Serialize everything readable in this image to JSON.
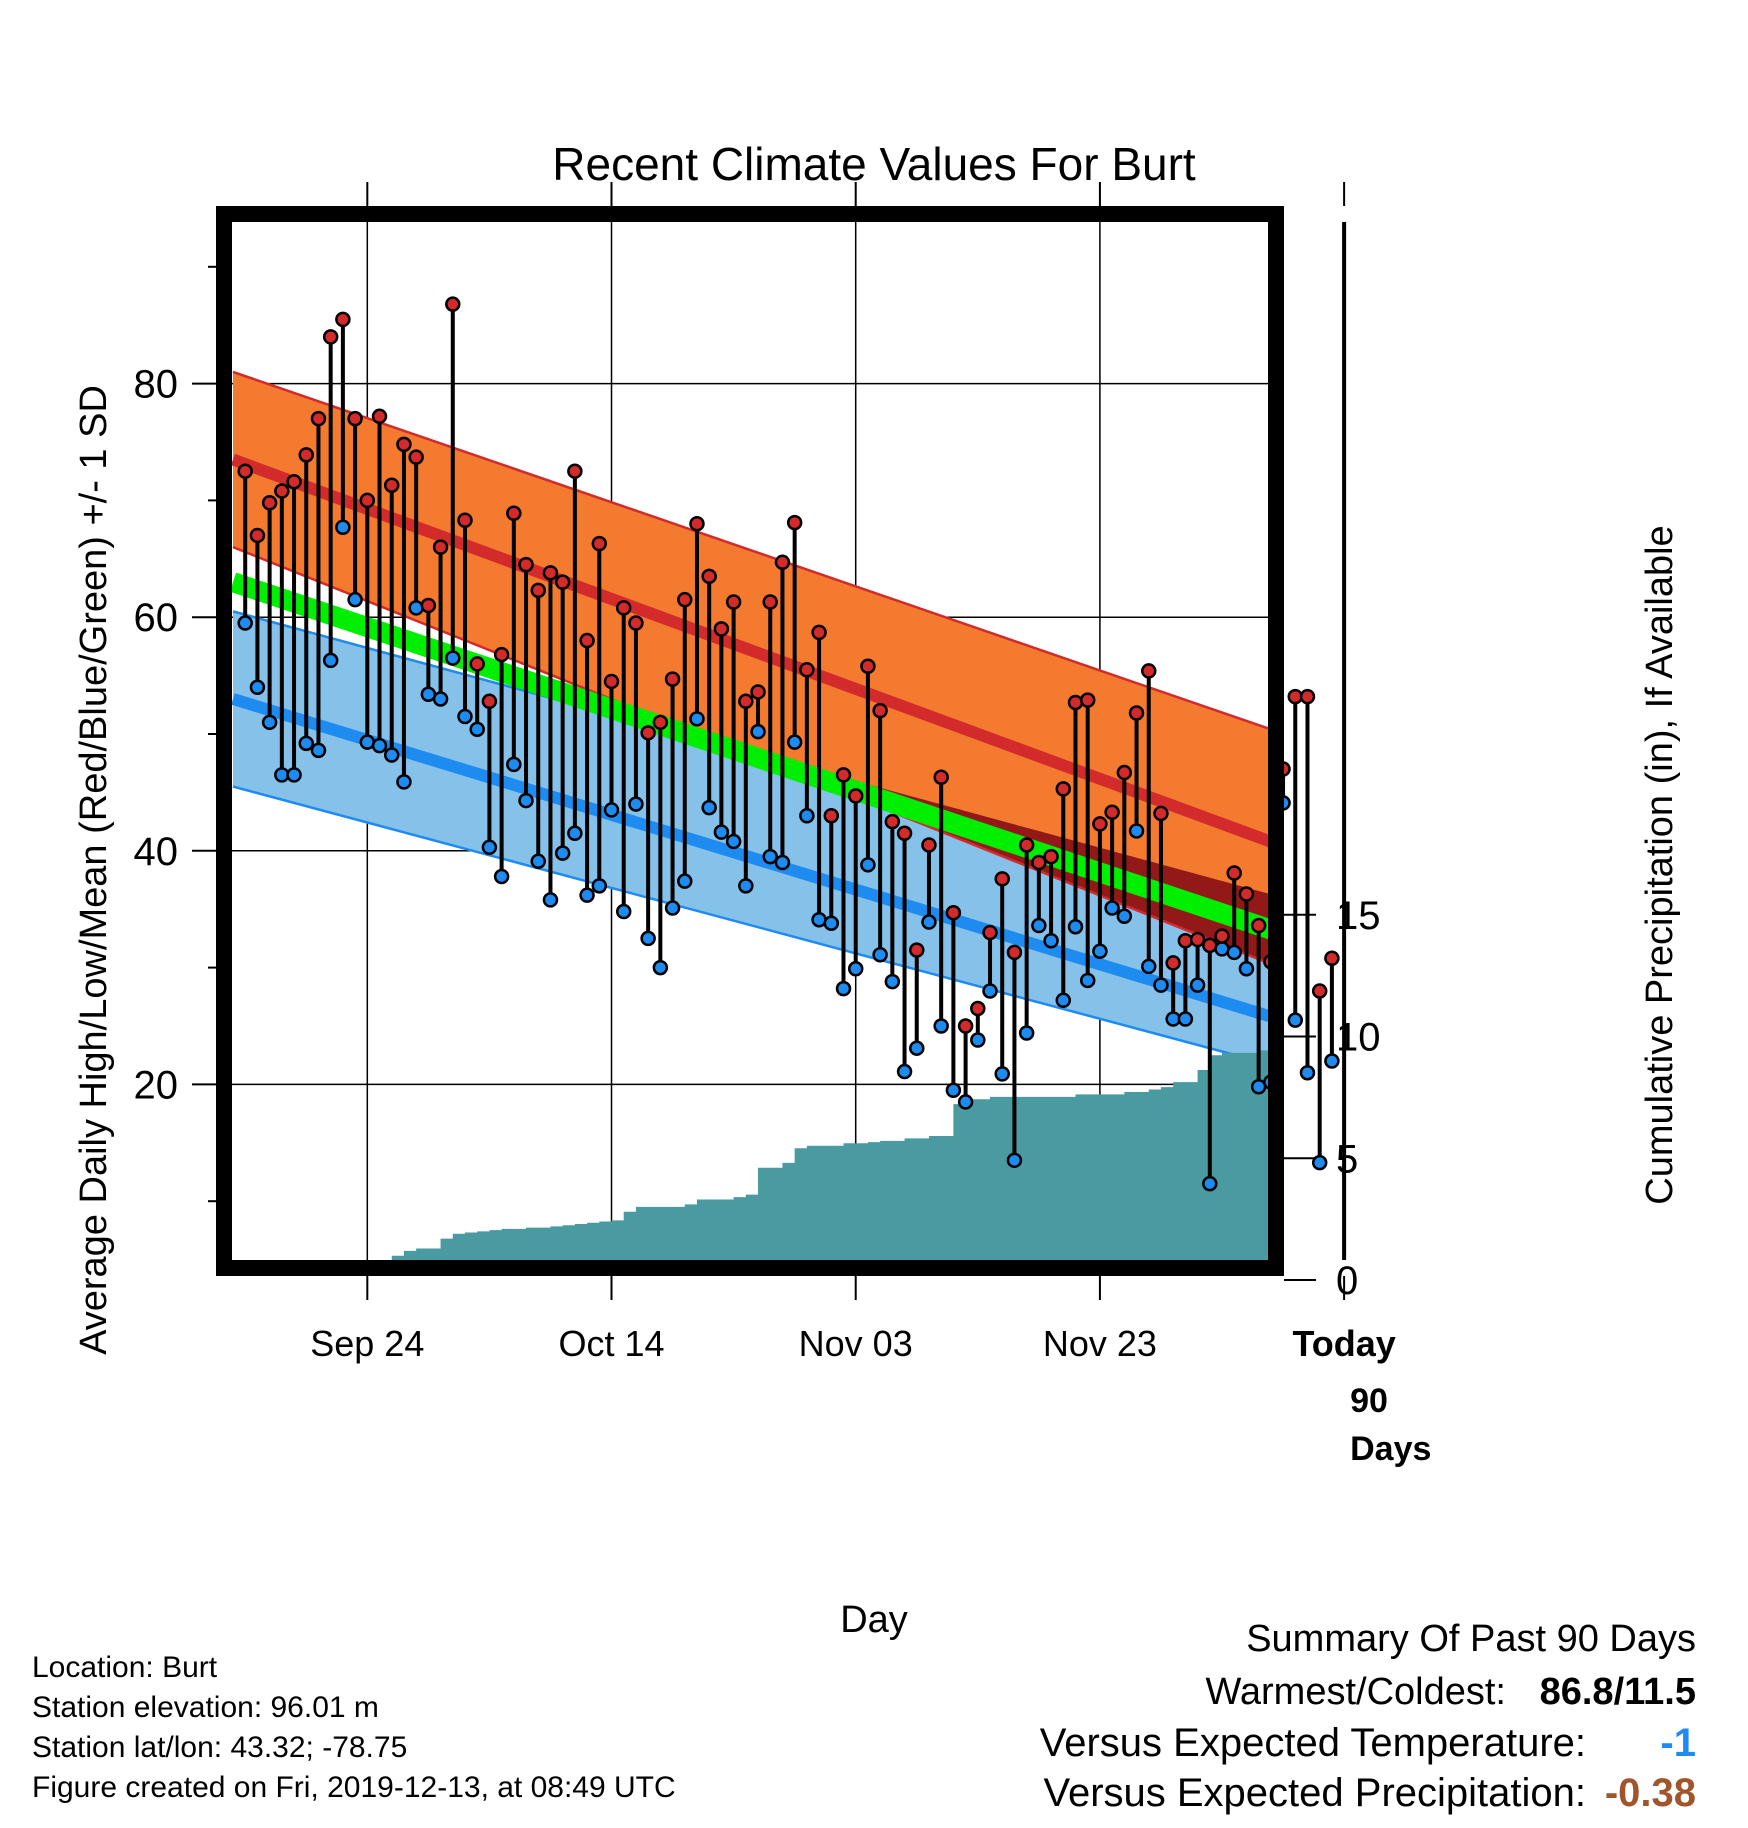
{
  "chart_data": {
    "type": "line",
    "title": "Recent Climate Values For Burt",
    "xlabel": "Day",
    "ylabel": "Average Daily High/Low/Mean (Red/Blue/Green) +/- 1 SD",
    "y2label": "Cumulative Precipitation (in), If Available",
    "x_tick_labels": [
      "Sep 24",
      "Oct 14",
      "Nov 03",
      "Nov 23",
      "Today"
    ],
    "x_tick_days": [
      10,
      30,
      50,
      70,
      90
    ],
    "xlim": [
      -1,
      99
    ],
    "ylim": [
      0,
      92
    ],
    "y_ticks": [
      20,
      40,
      60,
      80
    ],
    "y2lim": [
      0,
      20
    ],
    "y2_ticks": [
      0,
      5,
      10,
      15
    ],
    "y2_tick_labels": [
      "0",
      "5",
      "10",
      "15"
    ],
    "today_label": "90 Days",
    "grid": true,
    "normal_high": {
      "days": [
        -1,
        99
      ],
      "values": [
        73.5,
        35.0
      ],
      "sd_upper": [
        81.0,
        45.0
      ],
      "sd_lower": [
        66.0,
        24.0
      ]
    },
    "normal_low": {
      "days": [
        -1,
        99
      ],
      "values": [
        53.0,
        21.0
      ],
      "sd_upper": [
        60.5,
        32.0
      ],
      "sd_lower": [
        45.5,
        17.5
      ]
    },
    "normal_mean": {
      "days": [
        -1,
        99
      ],
      "values": [
        63.0,
        28.0
      ]
    },
    "series": [
      {
        "name": "High",
        "days": [
          0,
          1,
          2,
          3,
          4,
          5,
          6,
          7,
          8,
          9,
          10,
          11,
          12,
          13,
          14,
          15,
          16,
          17,
          18,
          19,
          20,
          21,
          22,
          23,
          24,
          25,
          26,
          27,
          28,
          29,
          30,
          31,
          32,
          33,
          34,
          35,
          36,
          37,
          38,
          39,
          40,
          41,
          42,
          43,
          44,
          45,
          46,
          47,
          48,
          49,
          50,
          51,
          52,
          53,
          54,
          55,
          56,
          57,
          58,
          59,
          60,
          61,
          62,
          63,
          64,
          65,
          66,
          67,
          68,
          69,
          70,
          71,
          72,
          73,
          74,
          75,
          76,
          77,
          78,
          79,
          80,
          81,
          82,
          83,
          84,
          85,
          86,
          87,
          88,
          89
        ],
        "values": [
          72.5,
          67,
          69.8,
          70.8,
          71.6,
          73.9,
          77,
          84,
          85.5,
          77,
          70,
          77.2,
          71.3,
          74.8,
          73.7,
          61,
          66,
          86.8,
          68.3,
          56,
          52.8,
          56.8,
          68.9,
          64.5,
          62.3,
          63.8,
          63,
          72.5,
          58,
          66.3,
          54.5,
          60.8,
          59.5,
          50.1,
          51,
          54.7,
          61.5,
          68,
          63.5,
          59,
          61.3,
          52.8,
          53.6,
          61.3,
          64.7,
          68.1,
          55.5,
          58.7,
          43,
          46.5,
          44.7,
          55.8,
          52,
          42.5,
          41.5,
          31.5,
          40.5,
          46.3,
          34.7,
          25,
          26.5,
          33,
          37.6,
          31.3,
          40.5,
          39,
          39.5,
          45.3,
          52.7,
          52.9,
          42.3,
          43.3,
          46.7,
          51.8,
          55.4,
          43.2,
          30.4,
          32.3,
          32.4,
          31.9,
          32.7,
          38.1,
          36.3,
          33.6,
          30.5,
          47,
          53.2,
          53.2,
          28,
          30.8
        ]
      },
      {
        "name": "Low",
        "days": [
          0,
          1,
          2,
          3,
          4,
          5,
          6,
          7,
          8,
          9,
          10,
          11,
          12,
          13,
          14,
          15,
          16,
          17,
          18,
          19,
          20,
          21,
          22,
          23,
          24,
          25,
          26,
          27,
          28,
          29,
          30,
          31,
          32,
          33,
          34,
          35,
          36,
          37,
          38,
          39,
          40,
          41,
          42,
          43,
          44,
          45,
          46,
          47,
          48,
          49,
          50,
          51,
          52,
          53,
          54,
          55,
          56,
          57,
          58,
          59,
          60,
          61,
          62,
          63,
          64,
          65,
          66,
          67,
          68,
          69,
          70,
          71,
          72,
          73,
          74,
          75,
          76,
          77,
          78,
          79,
          80,
          81,
          82,
          83,
          84,
          85,
          86,
          87,
          88,
          89
        ],
        "values": [
          59.5,
          54,
          51,
          46.5,
          46.5,
          49.2,
          48.6,
          56.3,
          67.7,
          61.5,
          49.3,
          49,
          48.2,
          45.9,
          60.8,
          53.4,
          53,
          56.5,
          51.5,
          50.4,
          40.3,
          37.8,
          47.4,
          44.3,
          39.1,
          35.8,
          39.8,
          41.5,
          36.2,
          37,
          43.5,
          34.8,
          44,
          32.5,
          30,
          35.1,
          37.4,
          51.3,
          43.7,
          41.6,
          40.8,
          37,
          50.2,
          39.5,
          39,
          49.3,
          43,
          34.1,
          33.8,
          28.2,
          29.9,
          38.8,
          31.1,
          28.8,
          21.1,
          23.1,
          33.9,
          25,
          19.5,
          18.5,
          23.8,
          28,
          20.9,
          13.5,
          24.4,
          33.6,
          32.3,
          27.2,
          33.5,
          28.9,
          31.4,
          35.1,
          34.4,
          41.7,
          30.1,
          28.5,
          25.6,
          25.6,
          28.5,
          11.5,
          31.6,
          31.3,
          29.9,
          19.8,
          20.2,
          44.1,
          25.5,
          21,
          13.3,
          22
        ]
      },
      {
        "name": "Cumulative Precipitation",
        "days": [
          0,
          8,
          9,
          10,
          11,
          12,
          13,
          14,
          15,
          16,
          17,
          18,
          19,
          20,
          21,
          22,
          23,
          24,
          25,
          26,
          27,
          28,
          29,
          30,
          31,
          32,
          33,
          34,
          35,
          36,
          37,
          38,
          39,
          40,
          41,
          42,
          43,
          44,
          45,
          46,
          47,
          48,
          49,
          50,
          51,
          52,
          53,
          54,
          55,
          56,
          57,
          58,
          59,
          60,
          61,
          62,
          63,
          64,
          65,
          66,
          67,
          68,
          69,
          70,
          71,
          72,
          73,
          74,
          75,
          76,
          77,
          78,
          79,
          80,
          81,
          82,
          83,
          84,
          85,
          86,
          87,
          88,
          89,
          90,
          91,
          92,
          93,
          94,
          95,
          96,
          97,
          98
        ],
        "values": [
          0,
          0,
          0.1,
          0.15,
          0.25,
          0.5,
          0.7,
          0.8,
          0.8,
          1.2,
          1.4,
          1.45,
          1.5,
          1.55,
          1.6,
          1.6,
          1.65,
          1.65,
          1.7,
          1.75,
          1.8,
          1.85,
          1.9,
          1.95,
          2.3,
          2.5,
          2.5,
          2.5,
          2.5,
          2.6,
          2.8,
          2.8,
          2.8,
          2.9,
          3,
          4.1,
          4.1,
          4.3,
          4.9,
          5,
          5,
          5,
          5.1,
          5.1,
          5.15,
          5.2,
          5.2,
          5.3,
          5.3,
          5.4,
          5.4,
          6.7,
          6.9,
          6.9,
          7,
          7,
          7,
          7,
          7,
          7,
          7,
          7.1,
          7.1,
          7.1,
          7.1,
          7.2,
          7.2,
          7.3,
          7.4,
          7.6,
          7.6,
          8.1,
          8.7,
          8.8,
          8.8,
          8.8,
          8.9,
          8.9,
          9,
          9,
          9.1,
          9.1,
          9.1,
          9.1,
          9.2,
          9.2,
          9.2,
          9.2,
          9.2,
          9.2,
          9.2,
          9.2
        ]
      }
    ]
  },
  "info": {
    "location": "Location: Burt",
    "elevation": "Station elevation: 96.01 m",
    "latlon": "Station lat/lon: 43.32; -78.75",
    "created": "Figure created on Fri, 2019-12-13, at 08:49 UTC"
  },
  "summary": {
    "title": "Summary Of Past 90 Days",
    "warmest_label": "Warmest/Coldest:",
    "warmest_value": "86.8/11.5",
    "temp_label": "Versus Expected Temperature:",
    "temp_value": "-1",
    "precip_label": "Versus Expected Precipitation:",
    "precip_value": "-0.38"
  },
  "colors": {
    "high_band": "#f47a30",
    "high_line": "#d32b2b",
    "low_band": "#85c1e8",
    "low_line": "#1e8bf0",
    "mean_line": "#00ee00",
    "cold_anomaly": "#931818",
    "precip_fill": "#4a9aa1",
    "high_marker": "#d32b2b",
    "low_marker": "#1e8bf0",
    "temp_value": "#1e8bf0",
    "precip_value": "#a0552b"
  }
}
